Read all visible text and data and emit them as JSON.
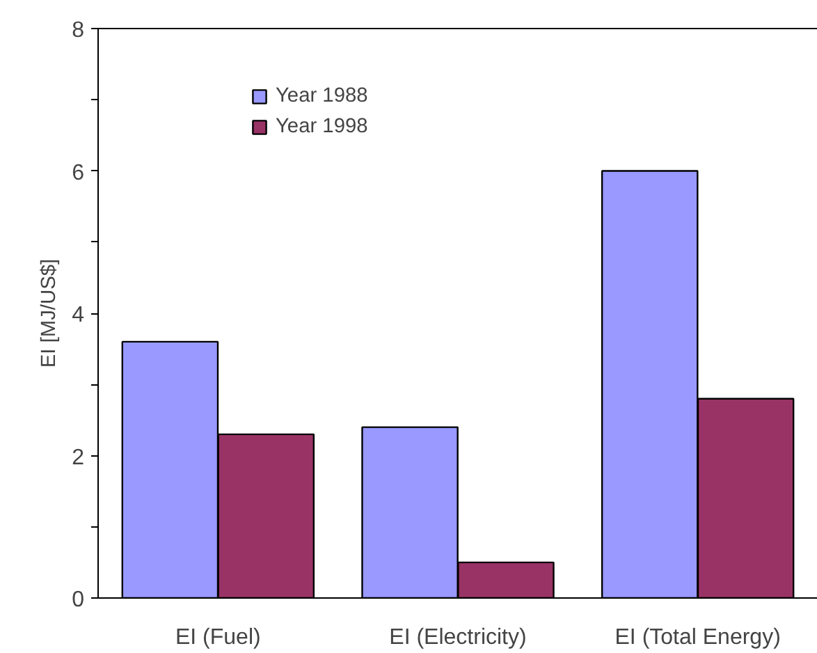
{
  "chart_data": {
    "type": "bar",
    "ylabel": "EI [MJ/US$]",
    "categories": [
      "EI (Fuel)",
      "EI (Electricity)",
      "EI (Total Energy)"
    ],
    "series": [
      {
        "name": "Year 1988",
        "color": "#9999ff",
        "values": [
          3.6,
          2.4,
          6.0
        ]
      },
      {
        "name": "Year 1998",
        "color": "#993366",
        "values": [
          2.3,
          0.5,
          2.8
        ]
      }
    ],
    "ylim": [
      0,
      8
    ],
    "yticks": [
      0,
      {
        "value": 1,
        "label": null
      },
      2,
      {
        "value": 3,
        "label": null
      },
      4,
      {
        "value": 5,
        "label": null
      },
      6,
      {
        "value": 7,
        "label": null
      },
      8
    ],
    "grid": false,
    "legend": "top left"
  }
}
